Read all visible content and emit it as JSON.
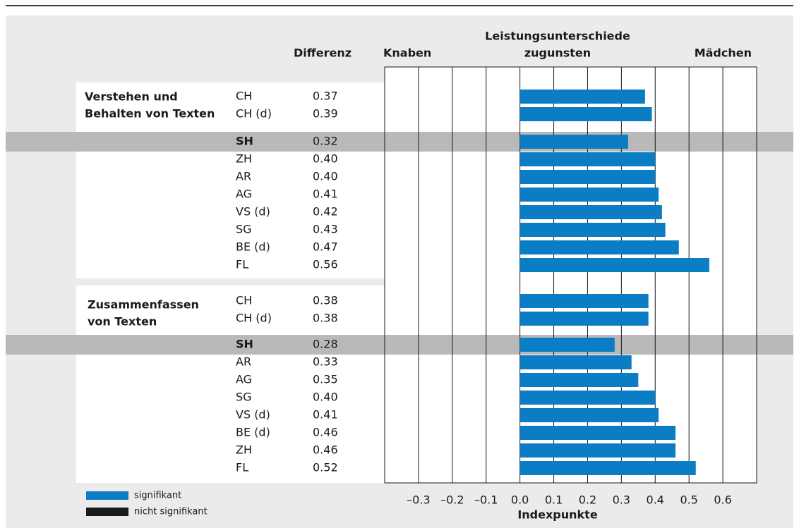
{
  "chart_data": {
    "type": "bar",
    "orientation": "horizontal",
    "column_title": "Differenz",
    "left_label": "Knaben",
    "center_label": [
      "Leistungsunterschiede",
      "zugunsten"
    ],
    "right_label": "Mädchen",
    "x_label": "Indexpunkte",
    "xlim": [
      -0.4,
      0.7
    ],
    "xticks": [
      {
        "value": -0.3,
        "label": "–0.3"
      },
      {
        "value": -0.2,
        "label": "–0.2"
      },
      {
        "value": -0.1,
        "label": "–0.1"
      },
      {
        "value": 0,
        "label": "0.0"
      },
      0.1,
      0.2,
      0.3,
      0.4,
      0.5,
      0.6
    ],
    "grid": true,
    "highlight_category": "SH",
    "legend": [
      {
        "name": "signifikant",
        "color": "#0b7dc4"
      },
      {
        "name": "nicht signifikant",
        "color": "#1a1a1a"
      }
    ],
    "groups": [
      {
        "label": [
          "Verstehen und",
          "Behalten von Texten"
        ],
        "categories": [
          "CH",
          "CH (d)",
          "SH",
          "ZH",
          "AR",
          "AG",
          "VS (d)",
          "SG",
          "BE (d)",
          "FL"
        ],
        "values": [
          0.37,
          0.39,
          0.32,
          0.4,
          0.4,
          0.41,
          0.42,
          0.43,
          0.47,
          0.56
        ],
        "value_labels": [
          "0.37",
          "0.39",
          "0.32",
          "0.40",
          "0.40",
          "0.41",
          "0.42",
          "0.43",
          "0.47",
          "0.56"
        ],
        "significant": [
          true,
          true,
          true,
          true,
          true,
          true,
          true,
          true,
          true,
          true
        ]
      },
      {
        "label": [
          "Zusammenfassen",
          "von Texten"
        ],
        "categories": [
          "CH",
          "CH (d)",
          "SH",
          "AR",
          "AG",
          "SG",
          "VS (d)",
          "BE (d)",
          "ZH",
          "FL"
        ],
        "values": [
          0.38,
          0.38,
          0.28,
          0.33,
          0.35,
          0.4,
          0.41,
          0.46,
          0.46,
          0.52
        ],
        "value_labels": [
          "0.38",
          "0.38",
          "0.28",
          "0.33",
          "0.35",
          "0.40",
          "0.41",
          "0.46",
          "0.46",
          "0.52"
        ],
        "significant": [
          true,
          true,
          true,
          true,
          true,
          true,
          true,
          true,
          true,
          true
        ]
      }
    ]
  }
}
